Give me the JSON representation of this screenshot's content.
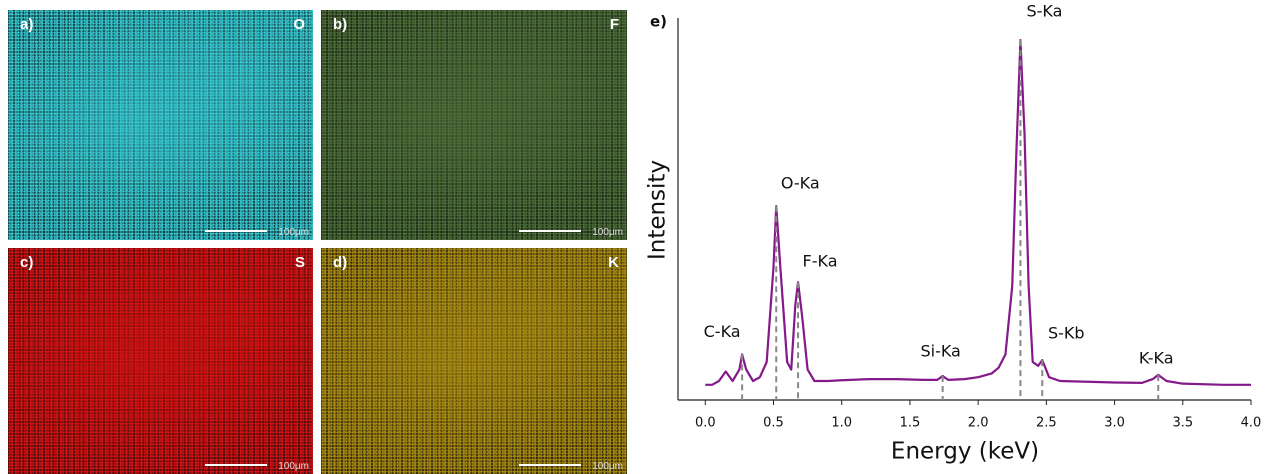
{
  "panels": [
    {
      "label": "a)",
      "element": "O",
      "scale": "100μm",
      "color": "#36c6cf"
    },
    {
      "label": "b)",
      "element": "F",
      "scale": "100μm",
      "color": "#4c6e38"
    },
    {
      "label": "c)",
      "element": "S",
      "scale": "100μm",
      "color": "#d41212"
    },
    {
      "label": "d)",
      "element": "K",
      "scale": "100μm",
      "color": "#a88a12"
    }
  ],
  "chart_data": {
    "type": "line",
    "label": "e)",
    "x_label": "Energy (keV)",
    "y_label": "Intensity",
    "x": [
      0.0,
      0.05,
      0.1,
      0.15,
      0.2,
      0.25,
      0.27,
      0.3,
      0.35,
      0.4,
      0.45,
      0.5,
      0.52,
      0.55,
      0.6,
      0.63,
      0.66,
      0.68,
      0.71,
      0.75,
      0.8,
      0.9,
      1.0,
      1.2,
      1.4,
      1.6,
      1.7,
      1.74,
      1.78,
      1.9,
      2.0,
      2.1,
      2.15,
      2.2,
      2.25,
      2.28,
      2.31,
      2.34,
      2.37,
      2.4,
      2.44,
      2.47,
      2.52,
      2.6,
      2.8,
      3.0,
      3.2,
      3.28,
      3.32,
      3.38,
      3.5,
      3.8,
      4.0
    ],
    "series": [
      {
        "color": "#85188a",
        "values": [
          4,
          4,
          5,
          7.5,
          5,
          8,
          12,
          8,
          5,
          6,
          10,
          35,
          51,
          35,
          10,
          8,
          25,
          31,
          22,
          8,
          5,
          5,
          5.2,
          5.5,
          5.5,
          5.3,
          5.3,
          6.3,
          5.3,
          5.5,
          6,
          7,
          8.5,
          12,
          30,
          65,
          94.7,
          70,
          30,
          10,
          9,
          10.5,
          6,
          5,
          4.8,
          4.6,
          4.5,
          5.5,
          6.6,
          5,
          4.3,
          4,
          4
        ]
      }
    ],
    "annotations": [
      {
        "text": "C-Ka",
        "x": 0.27,
        "y": 12
      },
      {
        "text": "O-Ka",
        "x": 0.52,
        "y": 51
      },
      {
        "text": "F-Ka",
        "x": 0.68,
        "y": 31
      },
      {
        "text": "Si-Ka",
        "x": 1.74,
        "y": 6.3
      },
      {
        "text": "S-Ka",
        "x": 2.31,
        "y": 94.7
      },
      {
        "text": "S-Kb",
        "x": 2.47,
        "y": 10.5
      },
      {
        "text": "K-Ka",
        "x": 3.32,
        "y": 6.6
      }
    ],
    "xlim": [
      -0.2,
      4.0
    ],
    "ylim": [
      0,
      100
    ],
    "xticks": [
      {
        "value": 0,
        "label": "0.0"
      },
      {
        "value": 0.5,
        "label": "0.5"
      },
      {
        "value": 1,
        "label": "1.0"
      },
      {
        "value": 1.5,
        "label": "1.5"
      },
      {
        "value": 2,
        "label": "2.0"
      },
      {
        "value": 2.5,
        "label": "2.5"
      },
      {
        "value": 3,
        "label": "3.0"
      },
      {
        "value": 3.5,
        "label": "3.5"
      },
      {
        "value": 4,
        "label": "4.0"
      }
    ]
  }
}
